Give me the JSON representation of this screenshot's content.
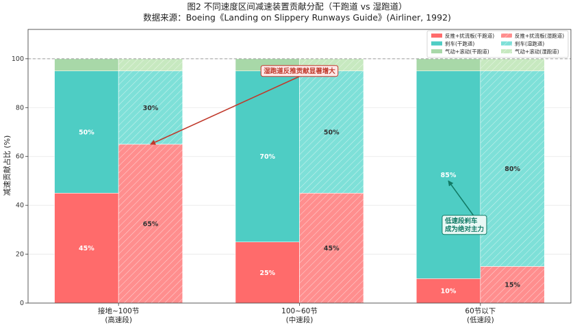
{
  "chart_data": {
    "type": "bar",
    "stacked": true,
    "grouped": true,
    "title": "图2 不同速度区间减速装置贡献分配（干跑道 vs 湿跑道）",
    "subtitle": "数据来源：Boeing《Landing on Slippery Runways Guide》(Airliner, 1992)",
    "xlabel": "",
    "ylabel": "减速贡献占比 (%)",
    "ylim": [
      0,
      112
    ],
    "yticks": [
      0,
      20,
      40,
      60,
      80,
      100
    ],
    "reference_line": 100,
    "grid": true,
    "legend_position": "top-right",
    "categories": [
      [
        "接地~100节",
        "(高速段)"
      ],
      [
        "100~60节",
        "(中速段)"
      ],
      [
        "60节以下",
        "(低速段)"
      ]
    ],
    "series": [
      {
        "name": "反推+扰流板(干跑道)",
        "group": "dry",
        "component": "reverse",
        "color": "#ff6b6b",
        "values": [
          45,
          25,
          10
        ],
        "labels": [
          "45%",
          "25%",
          "10%"
        ]
      },
      {
        "name": "刹车(干跑道)",
        "group": "dry",
        "component": "brake",
        "color": "#4ecdc4",
        "values": [
          50,
          70,
          85
        ],
        "labels": [
          "50%",
          "70%",
          "85%"
        ]
      },
      {
        "name": "气动+滚动(干跑道)",
        "group": "dry",
        "component": "aero",
        "color": "#a8d8a8",
        "values": [
          5,
          5,
          5
        ],
        "labels": [
          "",
          "",
          ""
        ]
      },
      {
        "name": "反推+扰流板(湿跑道)",
        "group": "wet",
        "component": "reverse",
        "color": "#ff8e8e",
        "values": [
          65,
          45,
          15
        ],
        "labels": [
          "65%",
          "45%",
          "15%"
        ]
      },
      {
        "name": "刹车(湿跑道)",
        "group": "wet",
        "component": "brake",
        "color": "#7ee0d8",
        "values": [
          30,
          50,
          80
        ],
        "labels": [
          "30%",
          "50%",
          "80%"
        ]
      },
      {
        "name": "气动+滚动(湿跑道)",
        "group": "wet",
        "component": "aero",
        "color": "#c7e9c0",
        "values": [
          5,
          5,
          5
        ],
        "labels": [
          "",
          "",
          ""
        ]
      }
    ],
    "annotations": [
      {
        "text": "湿跑道反推贡献显著增大",
        "color": "#c0392b",
        "box_fill": "#fde8e8",
        "from": {
          "x": "100~60节",
          "y": 95
        },
        "to": {
          "x": "接地~100节",
          "bar": "wet",
          "y": 65
        }
      },
      {
        "text": [
          "低速段刹车",
          "成为绝对主力"
        ],
        "color": "#117a65",
        "box_fill": "#e8f8f5",
        "from": {
          "x": "60节以下",
          "y": 32
        },
        "to": {
          "x": "60节以下",
          "bar": "dry",
          "y": 50
        }
      }
    ]
  }
}
